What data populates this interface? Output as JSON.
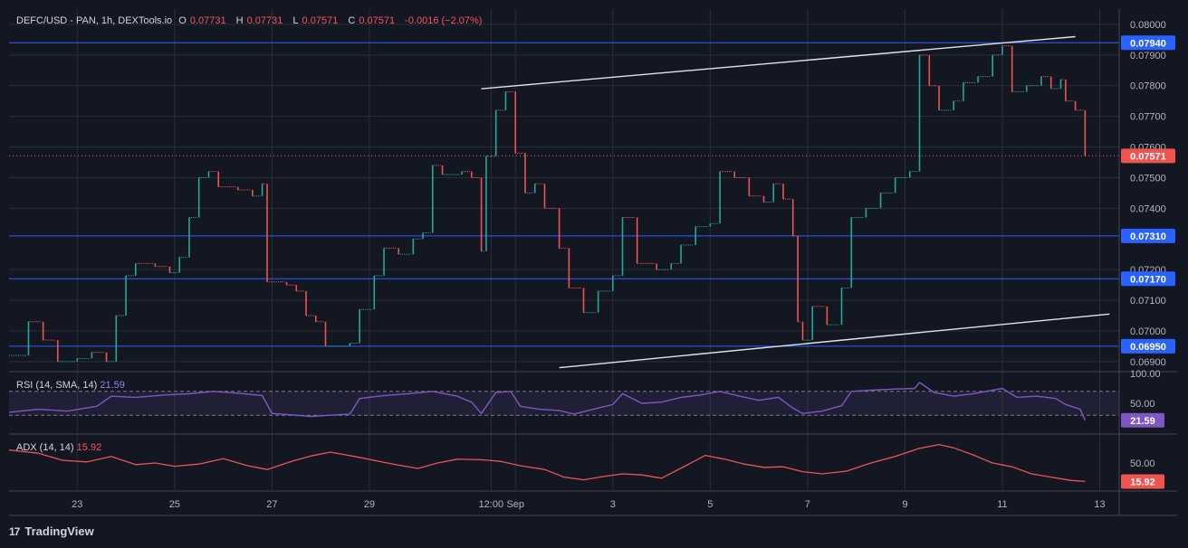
{
  "header": {
    "symbol": "DEFC/USD - PAN, 1h, DEXTools.io",
    "open_label": "O",
    "open_value": "0.07731",
    "high_label": "H",
    "high_value": "0.07731",
    "low_label": "L",
    "low_value": "0.07571",
    "close_label": "C",
    "close_value": "0.07571",
    "change": "-0.0016 (−2.07%)"
  },
  "brand": {
    "logo": "17",
    "name": "TradingView"
  },
  "colors": {
    "background": "#131722",
    "grid": "#2a2e39",
    "up": "#26a69a",
    "down": "#ef5350",
    "level_line": "#2962ff",
    "trendline": "#e0e3eb",
    "rsi": "#7e57c2",
    "adx": "#ef5350"
  },
  "chart_data": [
    {
      "type": "candlestick",
      "title": "DEFC/USD - PAN, 1h, DEXTools.io",
      "ylim": [
        0.0687,
        0.0805
      ],
      "y_ticks": [
        "0.08000",
        "0.07900",
        "0.07800",
        "0.07700",
        "0.07600",
        "0.07500",
        "0.07400",
        "0.07200",
        "0.07100",
        "0.07000",
        "0.06900"
      ],
      "x_ticks": [
        "23",
        "25",
        "27",
        "29",
        "12:00",
        "Sep",
        "3",
        "5",
        "7",
        "9",
        "11",
        "13"
      ],
      "x_tick_days": [
        23,
        25,
        27,
        29,
        31.5,
        32,
        34,
        36,
        38,
        40,
        42,
        44
      ],
      "xlim_days": [
        21.6,
        44.4
      ],
      "last_price": {
        "value": 0.07571,
        "label": "0.07571"
      },
      "horizontal_levels": [
        {
          "value": 0.0794,
          "label": "0.07940"
        },
        {
          "value": 0.0731,
          "label": "0.07310"
        },
        {
          "value": 0.0717,
          "label": "0.07170"
        },
        {
          "value": 0.0695,
          "label": "0.06950"
        }
      ],
      "trendlines": [
        {
          "from": [
            31.3,
            0.0779
          ],
          "to": [
            43.5,
            0.0796
          ]
        },
        {
          "from": [
            32.9,
            0.0688
          ],
          "to": [
            44.2,
            0.07055
          ]
        }
      ],
      "price_path": [
        [
          21.6,
          0.0692
        ],
        [
          22.0,
          0.0703
        ],
        [
          22.3,
          0.0697
        ],
        [
          22.6,
          0.069
        ],
        [
          23.0,
          0.0691
        ],
        [
          23.3,
          0.0693
        ],
        [
          23.6,
          0.069
        ],
        [
          23.8,
          0.0705
        ],
        [
          24.0,
          0.0718
        ],
        [
          24.2,
          0.0722
        ],
        [
          24.6,
          0.0721
        ],
        [
          24.9,
          0.0719
        ],
        [
          25.1,
          0.0724
        ],
        [
          25.3,
          0.0737
        ],
        [
          25.5,
          0.075
        ],
        [
          25.7,
          0.0752
        ],
        [
          25.9,
          0.0747
        ],
        [
          26.3,
          0.0746
        ],
        [
          26.6,
          0.0744
        ],
        [
          26.8,
          0.0748
        ],
        [
          26.9,
          0.0716
        ],
        [
          27.3,
          0.0715
        ],
        [
          27.5,
          0.0713
        ],
        [
          27.7,
          0.0705
        ],
        [
          27.9,
          0.0703
        ],
        [
          28.1,
          0.0695
        ],
        [
          28.6,
          0.0696
        ],
        [
          28.8,
          0.0707
        ],
        [
          29.1,
          0.0718
        ],
        [
          29.3,
          0.0727
        ],
        [
          29.6,
          0.0725
        ],
        [
          29.9,
          0.073
        ],
        [
          30.1,
          0.0732
        ],
        [
          30.3,
          0.0754
        ],
        [
          30.5,
          0.0751
        ],
        [
          30.9,
          0.0752
        ],
        [
          31.1,
          0.075
        ],
        [
          31.3,
          0.0726
        ],
        [
          31.4,
          0.0757
        ],
        [
          31.6,
          0.0772
        ],
        [
          31.8,
          0.0778
        ],
        [
          32.0,
          0.0758
        ],
        [
          32.2,
          0.0745
        ],
        [
          32.4,
          0.0748
        ],
        [
          32.6,
          0.074
        ],
        [
          32.9,
          0.0727
        ],
        [
          33.1,
          0.0714
        ],
        [
          33.4,
          0.0706
        ],
        [
          33.7,
          0.0713
        ],
        [
          34.0,
          0.0718
        ],
        [
          34.2,
          0.0737
        ],
        [
          34.5,
          0.0722
        ],
        [
          34.9,
          0.072
        ],
        [
          35.2,
          0.0722
        ],
        [
          35.4,
          0.0728
        ],
        [
          35.7,
          0.0734
        ],
        [
          36.0,
          0.0735
        ],
        [
          36.2,
          0.0752
        ],
        [
          36.5,
          0.075
        ],
        [
          36.8,
          0.0744
        ],
        [
          37.1,
          0.0742
        ],
        [
          37.3,
          0.0748
        ],
        [
          37.5,
          0.0743
        ],
        [
          37.7,
          0.0731
        ],
        [
          37.8,
          0.0703
        ],
        [
          37.9,
          0.0697
        ],
        [
          38.1,
          0.0708
        ],
        [
          38.4,
          0.0702
        ],
        [
          38.7,
          0.0714
        ],
        [
          38.9,
          0.0737
        ],
        [
          39.2,
          0.074
        ],
        [
          39.5,
          0.0745
        ],
        [
          39.8,
          0.075
        ],
        [
          40.1,
          0.0752
        ],
        [
          40.3,
          0.079
        ],
        [
          40.5,
          0.078
        ],
        [
          40.7,
          0.0772
        ],
        [
          41.0,
          0.0775
        ],
        [
          41.2,
          0.0781
        ],
        [
          41.5,
          0.0783
        ],
        [
          41.8,
          0.079
        ],
        [
          42.0,
          0.0793
        ],
        [
          42.2,
          0.0778
        ],
        [
          42.5,
          0.078
        ],
        [
          42.8,
          0.0783
        ],
        [
          43.0,
          0.0779
        ],
        [
          43.2,
          0.0782
        ],
        [
          43.3,
          0.0775
        ],
        [
          43.5,
          0.0772
        ],
        [
          43.7,
          0.0757
        ]
      ]
    },
    {
      "type": "line",
      "title": "RSI (14, SMA, 14)",
      "current_value": "21.59",
      "ylim": [
        0,
        100
      ],
      "y_ticks": [
        "100.00",
        "50.00"
      ],
      "bands": [
        30,
        70
      ],
      "points": [
        [
          21.6,
          35
        ],
        [
          22.2,
          40
        ],
        [
          22.8,
          37
        ],
        [
          23.4,
          45
        ],
        [
          23.7,
          62
        ],
        [
          24.2,
          60
        ],
        [
          24.8,
          64
        ],
        [
          25.3,
          66
        ],
        [
          25.8,
          70
        ],
        [
          26.3,
          67
        ],
        [
          26.8,
          63
        ],
        [
          27.0,
          33
        ],
        [
          27.8,
          28
        ],
        [
          28.2,
          30
        ],
        [
          28.6,
          32
        ],
        [
          28.8,
          58
        ],
        [
          29.3,
          63
        ],
        [
          29.8,
          66
        ],
        [
          30.3,
          70
        ],
        [
          30.8,
          62
        ],
        [
          31.1,
          52
        ],
        [
          31.3,
          33
        ],
        [
          31.6,
          68
        ],
        [
          31.9,
          70
        ],
        [
          32.1,
          45
        ],
        [
          32.5,
          40
        ],
        [
          32.9,
          38
        ],
        [
          33.2,
          32
        ],
        [
          33.6,
          40
        ],
        [
          34.0,
          48
        ],
        [
          34.2,
          66
        ],
        [
          34.6,
          50
        ],
        [
          35.0,
          52
        ],
        [
          35.4,
          60
        ],
        [
          35.8,
          64
        ],
        [
          36.2,
          70
        ],
        [
          36.6,
          62
        ],
        [
          37.0,
          55
        ],
        [
          37.4,
          60
        ],
        [
          37.7,
          42
        ],
        [
          37.9,
          33
        ],
        [
          38.3,
          37
        ],
        [
          38.7,
          46
        ],
        [
          38.9,
          70
        ],
        [
          39.3,
          72
        ],
        [
          39.8,
          74
        ],
        [
          40.2,
          75
        ],
        [
          40.3,
          85
        ],
        [
          40.6,
          68
        ],
        [
          41.0,
          62
        ],
        [
          41.4,
          66
        ],
        [
          41.8,
          72
        ],
        [
          42.0,
          75
        ],
        [
          42.3,
          60
        ],
        [
          42.7,
          62
        ],
        [
          43.1,
          58
        ],
        [
          43.3,
          48
        ],
        [
          43.6,
          40
        ],
        [
          43.7,
          21.59
        ]
      ]
    },
    {
      "type": "line",
      "title": "ADX (14, 14)",
      "current_value": "15.92",
      "ylim": [
        0,
        100
      ],
      "y_ticks": [
        "50.00"
      ],
      "points": [
        [
          21.6,
          74
        ],
        [
          22.2,
          68
        ],
        [
          22.7,
          55
        ],
        [
          23.2,
          52
        ],
        [
          23.7,
          62
        ],
        [
          24.2,
          47
        ],
        [
          24.6,
          50
        ],
        [
          25.0,
          44
        ],
        [
          25.5,
          48
        ],
        [
          26.0,
          58
        ],
        [
          26.5,
          45
        ],
        [
          26.9,
          38
        ],
        [
          27.4,
          53
        ],
        [
          27.8,
          63
        ],
        [
          28.2,
          70
        ],
        [
          28.7,
          62
        ],
        [
          29.2,
          53
        ],
        [
          29.6,
          46
        ],
        [
          30.0,
          40
        ],
        [
          30.4,
          50
        ],
        [
          30.8,
          57
        ],
        [
          31.3,
          56
        ],
        [
          31.7,
          53
        ],
        [
          32.1,
          45
        ],
        [
          32.6,
          38
        ],
        [
          33.0,
          24
        ],
        [
          33.4,
          19
        ],
        [
          33.8,
          25
        ],
        [
          34.2,
          30
        ],
        [
          34.6,
          28
        ],
        [
          35.0,
          22
        ],
        [
          35.5,
          45
        ],
        [
          35.9,
          64
        ],
        [
          36.3,
          57
        ],
        [
          36.7,
          48
        ],
        [
          37.1,
          42
        ],
        [
          37.5,
          43
        ],
        [
          37.9,
          34
        ],
        [
          38.3,
          30
        ],
        [
          38.8,
          35
        ],
        [
          39.3,
          50
        ],
        [
          39.8,
          62
        ],
        [
          40.3,
          77
        ],
        [
          40.7,
          84
        ],
        [
          41.0,
          78
        ],
        [
          41.4,
          65
        ],
        [
          41.8,
          50
        ],
        [
          42.2,
          43
        ],
        [
          42.6,
          30
        ],
        [
          43.0,
          24
        ],
        [
          43.4,
          18
        ],
        [
          43.7,
          15.92
        ]
      ]
    }
  ]
}
